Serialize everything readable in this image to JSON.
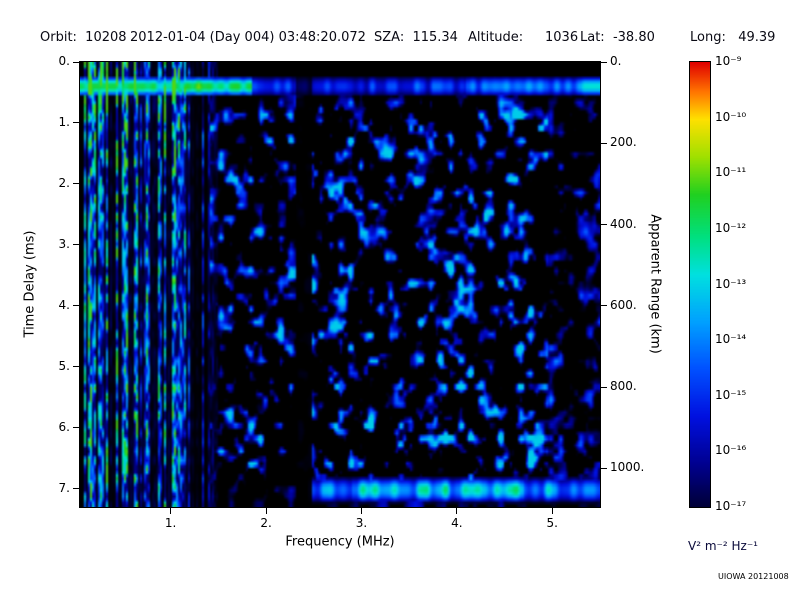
{
  "header": {
    "segments": [
      "Orbit:  10208",
      "2012-01-04 (Day 004) 03:48:20.072",
      "SZA:  115.34",
      "Altitude:",
      "1036",
      "Lat:  -38.80",
      "Long:   49.39"
    ]
  },
  "chart_data": {
    "type": "heatmap",
    "xlabel": "Frequency (MHz)",
    "ylabel": "Time Delay (ms)",
    "y2label": "Apparent Range (km)",
    "x_range_mhz": [
      0.05,
      5.5
    ],
    "y_range_ms": [
      0,
      7.3
    ],
    "y2_range_km": [
      0,
      1095
    ],
    "x_tick_values": [
      1,
      2,
      3,
      4,
      5
    ],
    "x_tick_labels": [
      "1.",
      "2.",
      "3.",
      "4.",
      "5."
    ],
    "y_tick_values": [
      0,
      1,
      2,
      3,
      4,
      5,
      6,
      7
    ],
    "y_tick_labels": [
      "0.",
      "1.",
      "2.",
      "3.",
      "4.",
      "5.",
      "6.",
      "7."
    ],
    "y2_tick_values": [
      0,
      200,
      400,
      600,
      800,
      1000
    ],
    "y2_tick_labels": [
      "0.",
      "200.",
      "400.",
      "600.",
      "800.",
      "1000."
    ],
    "colorbar": {
      "scale": "log10",
      "max": 1e-09,
      "min": 1e-17,
      "tick_labels": [
        "10⁻⁹",
        "10⁻¹⁰",
        "10⁻¹¹",
        "10⁻¹²",
        "10⁻¹³",
        "10⁻¹⁴",
        "10⁻¹⁵",
        "10⁻¹⁶",
        "10⁻¹⁷"
      ],
      "unit_label": "V² m⁻² Hz⁻¹",
      "colormap_stops": [
        [
          0.0,
          "#000000"
        ],
        [
          0.06,
          "#000038"
        ],
        [
          0.15,
          "#000090"
        ],
        [
          0.25,
          "#0010e0"
        ],
        [
          0.35,
          "#0050ff"
        ],
        [
          0.45,
          "#00a0ff"
        ],
        [
          0.55,
          "#00e0e0"
        ],
        [
          0.63,
          "#00e080"
        ],
        [
          0.72,
          "#20d020"
        ],
        [
          0.8,
          "#a0e000"
        ],
        [
          0.88,
          "#ffe000"
        ],
        [
          0.94,
          "#ff7000"
        ],
        [
          1.0,
          "#e00000"
        ]
      ]
    },
    "features": {
      "seed": 20121008,
      "plasma_stripes": {
        "f_max_mhz": 1.5,
        "fade_start_mhz": 1.05
      },
      "top_band": {
        "t_center_ms": 0.4,
        "t_halfwidth_ms": 0.14,
        "bright_f_max_mhz": 1.85
      },
      "surface_band": {
        "t_center_ms": 7.02,
        "t_halfwidth_ms": 0.22,
        "f_min_mhz": 2.45
      },
      "gap_band": {
        "f_min_mhz": 2.32,
        "f_max_mhz": 2.49
      },
      "noise_blobs": {
        "f_min_mhz": 1.42,
        "threshold": 0.555
      }
    }
  },
  "footer": {
    "credit": "UIOWA 20121008"
  }
}
